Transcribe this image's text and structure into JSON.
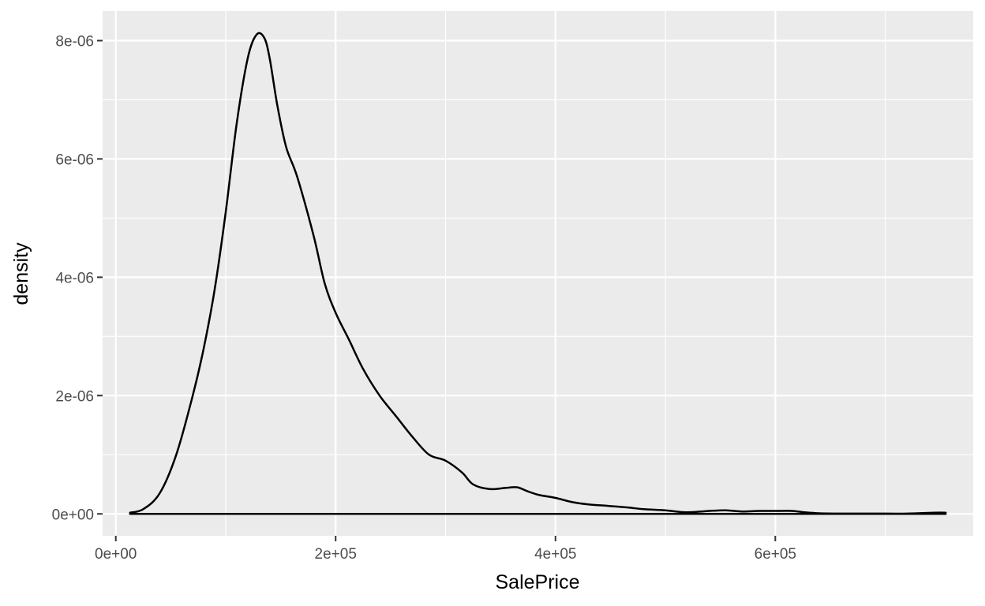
{
  "chart_data": {
    "type": "area",
    "geom": "density",
    "xlabel": "SalePrice",
    "ylabel": "density",
    "xlim": [
      -12000,
      780000
    ],
    "ylim": [
      -3.7e-07,
      8.5e-06
    ],
    "x_ticks": [
      {
        "value": 0,
        "label": "0e+00"
      },
      {
        "value": 200000,
        "label": "2e+05"
      },
      {
        "value": 400000,
        "label": "4e+05"
      },
      {
        "value": 600000,
        "label": "6e+05"
      }
    ],
    "x_minor": [
      100000,
      300000,
      500000,
      700000
    ],
    "y_ticks": [
      {
        "value": 0,
        "label": "0e+00"
      },
      {
        "value": 2e-06,
        "label": "2e-06"
      },
      {
        "value": 4e-06,
        "label": "4e-06"
      },
      {
        "value": 6e-06,
        "label": "6e-06"
      },
      {
        "value": 8e-06,
        "label": "8e-06"
      }
    ],
    "y_minor": [
      1e-06,
      3e-06,
      5e-06,
      7e-06
    ],
    "grid": true,
    "theme": {
      "panel": "#ebebeb",
      "grid": "#ffffff",
      "line": "#000000"
    },
    "series": [
      {
        "x": [
          13000,
          25000,
          40000,
          55000,
          70000,
          80000,
          90000,
          100000,
          110000,
          120000,
          128000,
          135000,
          140000,
          147000,
          155000,
          165000,
          180000,
          190000,
          200000,
          212000,
          225000,
          240000,
          255000,
          270000,
          285000,
          300000,
          315000,
          325000,
          340000,
          355000,
          365000,
          375000,
          385000,
          400000,
          415000,
          430000,
          445000,
          465000,
          480000,
          500000,
          515000,
          525000,
          540000,
          555000,
          570000,
          585000,
          600000,
          615000,
          625000,
          640000,
          660000,
          690000,
          720000,
          745000,
          755000
        ],
        "y": [
          2e-08,
          8e-08,
          3.5e-07,
          1e-06,
          2e-06,
          2.8e-06,
          3.8e-06,
          5.1e-06,
          6.6e-06,
          7.7e-06,
          8.1e-06,
          8.05e-06,
          7.7e-06,
          6.9e-06,
          6.2e-06,
          5.7e-06,
          4.7e-06,
          3.9e-06,
          3.4e-06,
          2.95e-06,
          2.45e-06,
          2e-06,
          1.65e-06,
          1.3e-06,
          1e-06,
          9e-07,
          7e-07,
          5e-07,
          4.2e-07,
          4.4e-07,
          4.5e-07,
          3.8e-07,
          3.2e-07,
          2.7e-07,
          2e-07,
          1.6e-07,
          1.4e-07,
          1.1e-07,
          8e-08,
          6e-08,
          3e-08,
          3e-08,
          5e-08,
          6e-08,
          4e-08,
          5e-08,
          5e-08,
          5e-08,
          3e-08,
          1e-08,
          5e-09,
          5e-09,
          5e-09,
          2e-08,
          2e-08
        ]
      }
    ]
  }
}
